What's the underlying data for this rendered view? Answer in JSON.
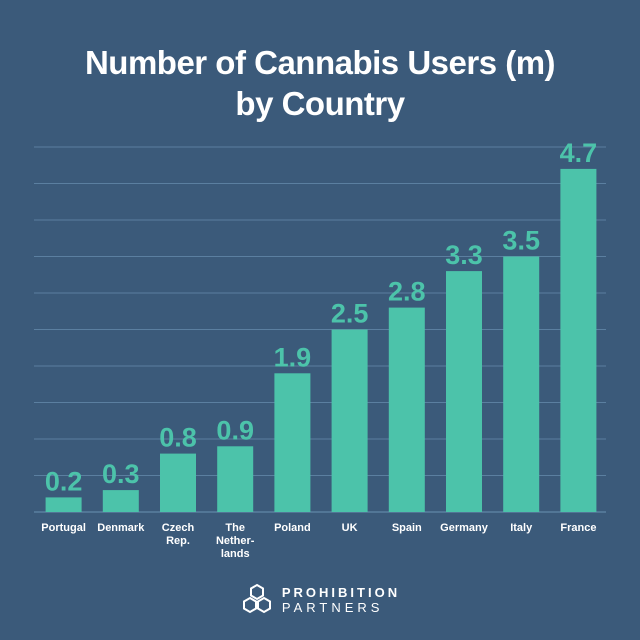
{
  "chart_data": {
    "type": "bar",
    "title_lines": [
      "Number of Cannabis Users (m)",
      "by Country"
    ],
    "categories": [
      [
        "Portugal"
      ],
      [
        "Denmark"
      ],
      [
        "Czech",
        "Rep."
      ],
      [
        "The",
        "Nether-",
        "lands"
      ],
      [
        "Poland"
      ],
      [
        "UK"
      ],
      [
        "Spain"
      ],
      [
        "Germany"
      ],
      [
        "Italy"
      ],
      [
        "France"
      ]
    ],
    "values": [
      0.2,
      0.3,
      0.8,
      0.9,
      1.9,
      2.5,
      2.8,
      3.3,
      3.5,
      4.7
    ],
    "value_labels": [
      "0.2",
      "0.3",
      "0.8",
      "0.9",
      "1.9",
      "2.5",
      "2.8",
      "3.3",
      "3.5",
      "4.7"
    ],
    "ylim": [
      0,
      5
    ],
    "gridlines": 10,
    "xlabel": "",
    "ylabel": ""
  },
  "brand": {
    "line1": "PROHIBITION",
    "line2": "PARTNERS",
    "logo_icon": "hexagon-cluster-icon"
  },
  "colors": {
    "background": "#3b5a7a",
    "bar": "#4cc3aa",
    "grid": "#5b7fa0",
    "text": "#ffffff"
  }
}
